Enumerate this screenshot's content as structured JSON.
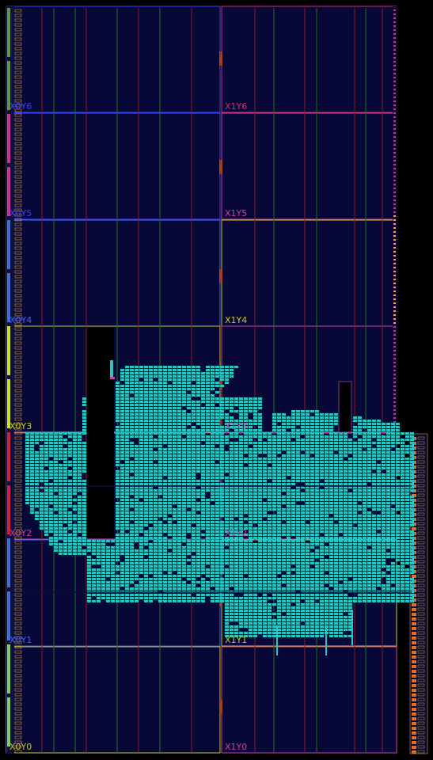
{
  "regions": [
    {
      "name": "X0Y6",
      "color": "#4040ff",
      "row": 0,
      "col": 0
    },
    {
      "name": "X1Y6",
      "color": "#d0306a",
      "row": 0,
      "col": 1
    },
    {
      "name": "X0Y5",
      "color": "#4040ff",
      "row": 1,
      "col": 0
    },
    {
      "name": "X1Y5",
      "color": "#d040a0",
      "row": 1,
      "col": 1
    },
    {
      "name": "X0Y4",
      "color": "#4060ff",
      "row": 2,
      "col": 0
    },
    {
      "name": "X1Y4",
      "color": "#c8c820",
      "row": 2,
      "col": 1
    },
    {
      "name": "X0Y3",
      "color": "#c8c820",
      "row": 3,
      "col": 0
    },
    {
      "name": "X1Y3",
      "color": "#d040a0",
      "row": 3,
      "col": 1
    },
    {
      "name": "X0Y2",
      "color": "#d040a0",
      "row": 4,
      "col": 0
    },
    {
      "name": "X1Y2",
      "color": "#d040a0",
      "row": 4,
      "col": 1
    },
    {
      "name": "X0Y1",
      "color": "#4060ff",
      "row": 5,
      "col": 0
    },
    {
      "name": "X1Y1",
      "color": "#c8c820",
      "row": 5,
      "col": 1
    },
    {
      "name": "X0Y0",
      "color": "#c8c820",
      "row": 6,
      "col": 0
    },
    {
      "name": "X1Y0",
      "color": "#d040a0",
      "row": 6,
      "col": 1
    }
  ],
  "colors": {
    "background": "#000000",
    "region_fill": "#080838",
    "placed_logic": "#2ec4c4",
    "dsp_column": "#8a1a1a",
    "bram_column": "#1f6b1f",
    "io_bank": "#e07020",
    "clock_region_io": "#c8a040"
  }
}
